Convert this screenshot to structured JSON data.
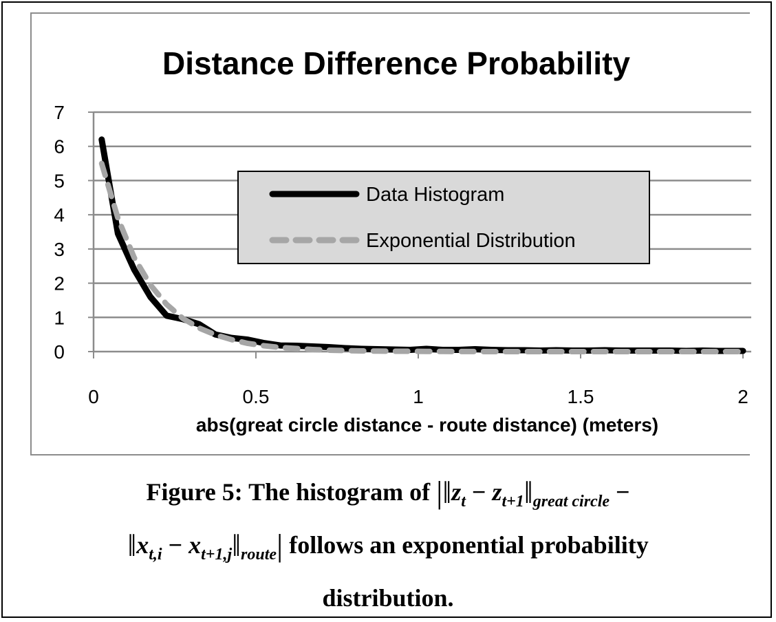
{
  "chart_data": {
    "type": "line",
    "title": "Distance Difference Probability",
    "xlabel": "abs(great circle distance - route distance)  (meters)",
    "ylabel": "",
    "xlim": [
      0,
      2
    ],
    "ylim": [
      0,
      7
    ],
    "x_ticks": [
      "0",
      "0.5",
      "1",
      "1.5",
      "2"
    ],
    "y_ticks": [
      "0",
      "1",
      "2",
      "3",
      "4",
      "5",
      "6",
      "7"
    ],
    "grid": "horizontal",
    "legend_position": "center-right",
    "series": [
      {
        "name": "Data Histogram",
        "color": "#000000",
        "style": "solid",
        "x": [
          0.025,
          0.075,
          0.125,
          0.175,
          0.225,
          0.275,
          0.325,
          0.375,
          0.425,
          0.475,
          0.525,
          0.575,
          0.625,
          0.675,
          0.725,
          0.775,
          0.825,
          0.875,
          0.925,
          0.975,
          1.025,
          1.075,
          1.125,
          1.175,
          1.225,
          1.275,
          1.325,
          1.375,
          1.425,
          1.475,
          1.525,
          1.575,
          1.625,
          1.675,
          1.725,
          1.775,
          1.825,
          1.875,
          1.925,
          1.975,
          2.0
        ],
        "y": [
          6.2,
          3.45,
          2.4,
          1.6,
          1.05,
          0.95,
          0.8,
          0.5,
          0.4,
          0.35,
          0.25,
          0.18,
          0.17,
          0.15,
          0.13,
          0.1,
          0.08,
          0.07,
          0.06,
          0.05,
          0.08,
          0.05,
          0.05,
          0.07,
          0.05,
          0.04,
          0.04,
          0.03,
          0.04,
          0.03,
          0.03,
          0.04,
          0.03,
          0.03,
          0.03,
          0.03,
          0.02,
          0.03,
          0.02,
          0.02,
          0.02
        ]
      },
      {
        "name": "Exponential Distribution",
        "color": "#a6a6a6",
        "style": "dashed",
        "x": [
          0.025,
          0.075,
          0.125,
          0.175,
          0.225,
          0.275,
          0.325,
          0.375,
          0.425,
          0.475,
          0.525,
          0.575,
          0.625,
          0.675,
          0.725,
          0.775,
          0.825,
          0.875,
          0.925,
          0.975,
          1.025,
          1.075,
          1.125,
          1.175,
          1.225,
          1.275,
          1.325,
          1.375,
          1.425,
          1.475,
          1.525,
          1.575,
          1.625,
          1.675,
          1.725,
          1.775,
          1.825,
          1.875,
          1.925,
          1.975,
          2.0
        ],
        "y": [
          5.5,
          3.9,
          2.75,
          1.95,
          1.38,
          0.97,
          0.69,
          0.49,
          0.35,
          0.24,
          0.17,
          0.12,
          0.09,
          0.06,
          0.04,
          0.03,
          0.02,
          0.015,
          0.01,
          0.01,
          0.005,
          0.004,
          0.003,
          0.002,
          0.001,
          0.001,
          0.0,
          0.0,
          0.0,
          0.0,
          0.0,
          0.0,
          0.0,
          0.0,
          0.0,
          0.0,
          0.0,
          0.0,
          0.0,
          0.0,
          0.0
        ]
      }
    ]
  },
  "caption": {
    "prefix": "Figure 5: The histogram of",
    "z_t": "z",
    "z_t_sub": "t",
    "minus": "−",
    "z_t1": "z",
    "z_t1_sub": "t+1",
    "great_circle_sub": "great circle",
    "x_ti": "x",
    "x_ti_sub": "t,i",
    "x_t1j": "x",
    "x_t1j_sub": "t+1,j",
    "route_sub": "route",
    "suffix_line2": "follows an exponential probability",
    "line3": "distribution."
  }
}
